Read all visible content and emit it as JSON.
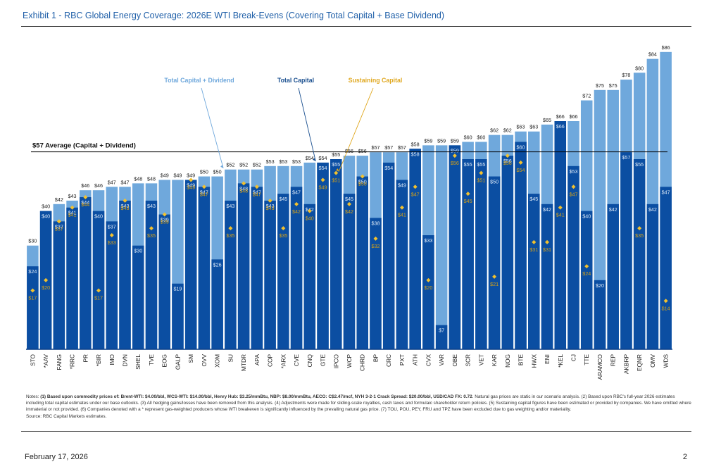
{
  "page": {
    "title": "Exhibit 1 - RBC Global Energy Coverage: 2026E WTI Break-Evens (Covering Total Capital + Base Dividend)",
    "notes_bold": "(1) Based upon commodity prices of: Brent-WTI: $4.00/bbl, WCS-WTI: $14.00/bbl, Henry Hub: $3.25/mmBtu, NBP: $8.00/mmBtu, AECO: C$2.47/mcf, NYH 3-2-1 Crack Spread: $20.00/bbl, USD/CAD FX: 0.72",
    "notes_prefix": "Notes: ",
    "notes_rest": ". Natural gas prices are static in our scenario analysis. (2) Based upon RBC's full-year 2026 estimates including total capital estimates under our base outlooks. (3) All hedging gains/losses have been removed from this analysis. (4) Adjustments were made for sliding-scale royalties, cash taxes and formulaic shareholder return policies. (5) Sustaining capital figures have been estimated or provided by companies. We have omitted where immaterial or not provided. (6) Companies denoted with a * represent gas-weighted producers whose WTI breakeven is significantly influenced by the prevailing natural gas price. (7) TOU, POU, PEY, FRU and TPZ have been excluded due to gas weighting and/or materiality.",
    "source": "Source: RBC Capital Markets estimates.",
    "footer_date": "February 17, 2026",
    "page_number": "2"
  },
  "chart_data": {
    "type": "bar",
    "title": "2026E WTI Break-Evens (Covering Total Capital + Base Dividend)",
    "xlabel": "",
    "ylabel": "",
    "ylim": [
      0,
      88
    ],
    "grid": false,
    "value_prefix": "$",
    "average": {
      "value": 57,
      "label": "$57 Average (Capital + Dividend)"
    },
    "colors": {
      "capital_plus_dividend": "#6fa8dc",
      "total_capital": "#0b4ea2",
      "sustaining_capital": "#f2c12e",
      "sustaining_label": "#d4a017",
      "average_line": "#000000"
    },
    "annotations": [
      {
        "text": "Total Capital + Dividend",
        "series": "Total Capital + Dividend",
        "points_to": "SU"
      },
      {
        "text": "Total Capital",
        "series": "Total Capital",
        "points_to": "GTE"
      },
      {
        "text": "Sustaining Capital",
        "series": "Sustaining Capital",
        "points_to": "IPCO"
      }
    ],
    "categories": [
      "STO",
      "*AAV",
      "FANG",
      "*RRC",
      "PR",
      "*BIR",
      "IMO",
      "DVN",
      "SHEL",
      "TVE",
      "EOG",
      "GALP",
      "SM",
      "OVV",
      "XOM",
      "SU",
      "MTDR",
      "APA",
      "COP",
      "*ARX",
      "CVE",
      "CNQ",
      "GTE",
      "IPCO",
      "WCP",
      "CHRD",
      "BP",
      "CRC",
      "PXT",
      "ATH",
      "CVX",
      "VAR",
      "OBE",
      "SCR",
      "VET",
      "KAR",
      "NOG",
      "BTE",
      "HWX",
      "ENI",
      "*KEL",
      "CJ",
      "TTE",
      "ARAMCO",
      "REP",
      "AKBRP",
      "EQNR",
      "OMV",
      "WDS"
    ],
    "series": [
      {
        "name": "Total Capital + Dividend",
        "type": "bar",
        "values": [
          30,
          40,
          42,
          43,
          46,
          46,
          47,
          47,
          48,
          48,
          49,
          49,
          49,
          50,
          50,
          52,
          52,
          52,
          53,
          53,
          53,
          54,
          54,
          55,
          56,
          56,
          57,
          57,
          57,
          58,
          59,
          59,
          59,
          60,
          60,
          62,
          62,
          63,
          63,
          65,
          66,
          66,
          72,
          75,
          75,
          78,
          80,
          84,
          86
        ]
      },
      {
        "name": "Total Capital",
        "type": "bar",
        "values": [
          24,
          40,
          37,
          41,
          44,
          40,
          37,
          43,
          30,
          43,
          39,
          19,
          49,
          47,
          26,
          43,
          48,
          47,
          43,
          45,
          47,
          42,
          54,
          55,
          45,
          50,
          38,
          54,
          49,
          58,
          33,
          7,
          59,
          55,
          55,
          50,
          56,
          60,
          45,
          42,
          66,
          53,
          40,
          20,
          42,
          57,
          55,
          42,
          47
        ]
      },
      {
        "name": "Sustaining Capital",
        "type": "scatter",
        "values": [
          17,
          20,
          37,
          41,
          44,
          17,
          33,
          43,
          null,
          35,
          39,
          null,
          49,
          47,
          null,
          35,
          48,
          47,
          43,
          35,
          42,
          40,
          49,
          51,
          42,
          50,
          32,
          null,
          41,
          47,
          20,
          null,
          56,
          45,
          51,
          21,
          56,
          54,
          31,
          31,
          41,
          47,
          24,
          null,
          null,
          null,
          35,
          null,
          14
        ]
      }
    ]
  }
}
